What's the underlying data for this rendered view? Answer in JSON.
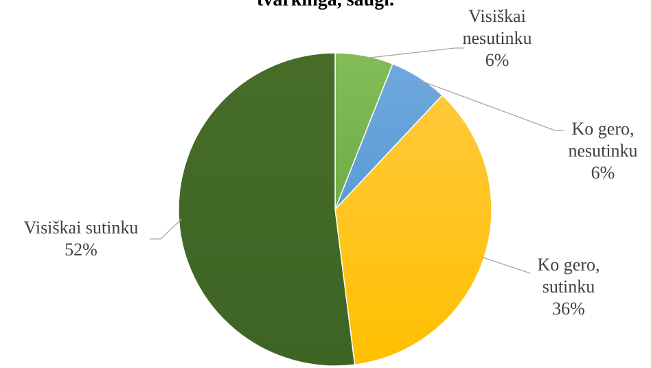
{
  "chart_data": {
    "type": "pie",
    "title": "tvarkinga, saugi.",
    "slices": [
      {
        "label_lines": [
          "Visiškai",
          "nesutinku"
        ],
        "value": 6,
        "pct": "6%",
        "color": "#70ad47",
        "color_light": "#82bd58"
      },
      {
        "label_lines": [
          "Ko gero,",
          "nesutinku"
        ],
        "value": 6,
        "pct": "6%",
        "color": "#5b9bd5",
        "color_light": "#6fa8de"
      },
      {
        "label_lines": [
          "Ko gero,",
          "sutinku"
        ],
        "value": 36,
        "pct": "36%",
        "color": "#ffc000",
        "color_light": "#ffc93a"
      },
      {
        "label_lines": [
          "Visiškai sutinku"
        ],
        "value": 52,
        "pct": "52%",
        "color": "#3e6424",
        "color_light": "#466d28"
      }
    ],
    "start_angle_deg": 0,
    "direction": "clockwise",
    "legend": "none",
    "data_labels": "outside with leader lines"
  }
}
